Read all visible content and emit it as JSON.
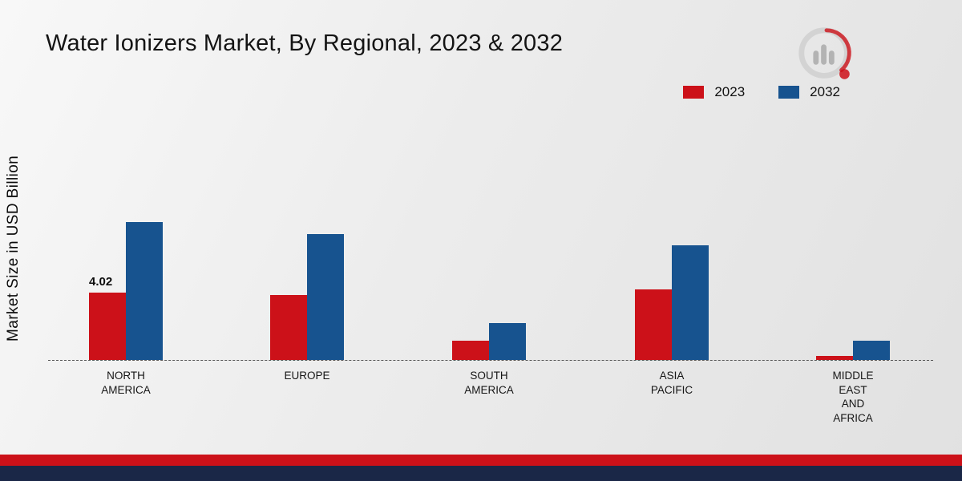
{
  "page": {
    "title": "Water Ionizers Market, By Regional, 2023 & 2032",
    "y_axis_label": "Market Size in USD Billion"
  },
  "chart_data": {
    "type": "bar",
    "title": "Water Ionizers Market, By Regional, 2023 & 2032",
    "xlabel": "",
    "ylabel": "Market Size in USD Billion",
    "categories": [
      "NORTH AMERICA",
      "EUROPE",
      "SOUTH AMERICA",
      "ASIA PACIFIC",
      "MIDDLE EAST AND AFRICA"
    ],
    "series": [
      {
        "name": "2023",
        "color": "#cc1119",
        "values": [
          4.02,
          3.85,
          1.15,
          4.2,
          0.25
        ]
      },
      {
        "name": "2032",
        "color": "#17538f",
        "values": [
          8.2,
          7.5,
          2.2,
          6.8,
          1.15
        ]
      }
    ],
    "annotations": [
      {
        "series": "2023",
        "category": "NORTH AMERICA",
        "text": "4.02"
      }
    ],
    "ylim": [
      0,
      9
    ],
    "grid": "off",
    "baseline_style": "dashed",
    "legend_position": "top-right"
  },
  "branding": {
    "logo_icon": "market-research-future-logo",
    "stripe_red": "#cc1119",
    "stripe_navy": "#1a2747"
  }
}
